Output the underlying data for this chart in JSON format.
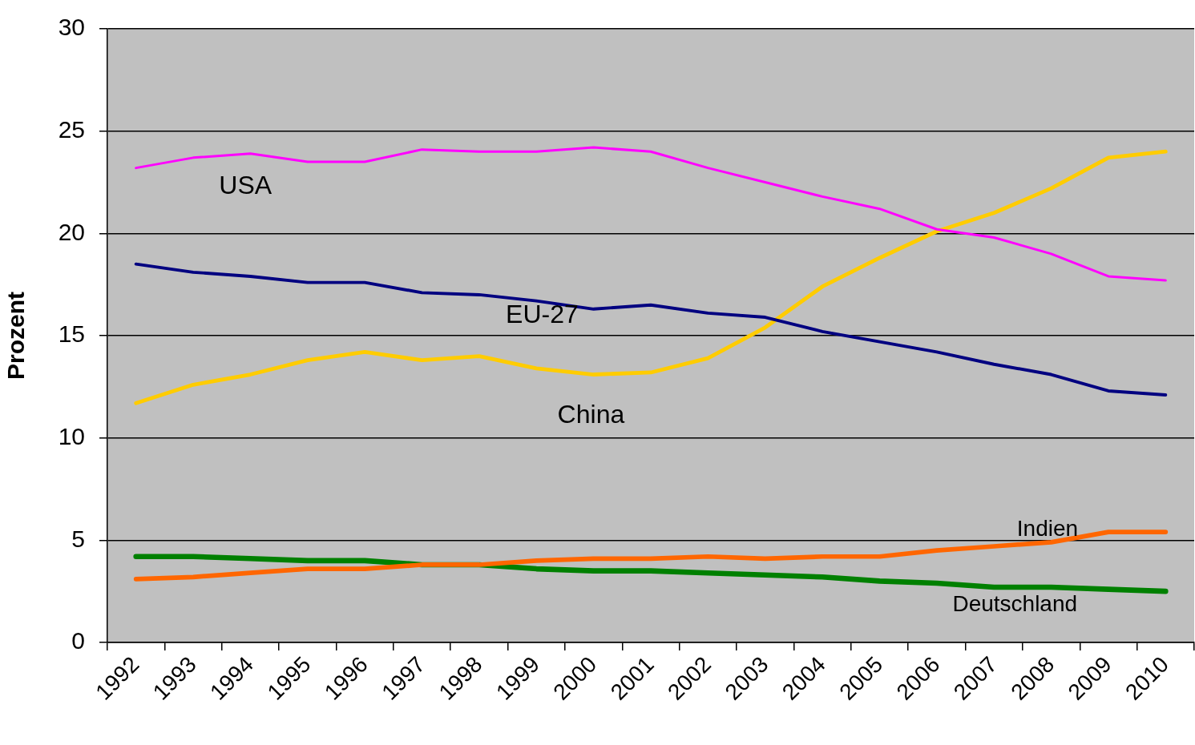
{
  "chart_data": {
    "type": "line",
    "ylabel": "Prozent",
    "categories": [
      "1992",
      "1993",
      "1994",
      "1995",
      "1996",
      "1997",
      "1998",
      "1999",
      "2000",
      "2001",
      "2002",
      "2003",
      "2004",
      "2005",
      "2006",
      "2007",
      "2008",
      "2009",
      "2010"
    ],
    "ylim": [
      0,
      30
    ],
    "yticks": [
      0,
      5,
      10,
      15,
      20,
      25,
      30
    ],
    "grid": "y",
    "legend": false,
    "marker": "none",
    "line_style": "solid",
    "series": [
      {
        "name": "USA",
        "color": "#ff00ff",
        "values": [
          23.2,
          23.7,
          23.9,
          23.5,
          23.5,
          24.1,
          24.0,
          24.0,
          24.2,
          24.0,
          23.2,
          22.5,
          21.8,
          21.2,
          20.2,
          19.8,
          19.0,
          17.9,
          17.7
        ]
      },
      {
        "name": "EU-27",
        "color": "#000080",
        "values": [
          18.5,
          18.1,
          17.9,
          17.6,
          17.6,
          17.1,
          17.0,
          16.7,
          16.3,
          16.5,
          16.1,
          15.9,
          15.2,
          14.7,
          14.2,
          13.6,
          13.1,
          12.3,
          12.1
        ]
      },
      {
        "name": "China",
        "color": "#ffcc00",
        "values": [
          11.7,
          12.6,
          13.1,
          13.8,
          14.2,
          13.8,
          14.0,
          13.4,
          13.1,
          13.2,
          13.9,
          15.4,
          17.4,
          18.8,
          20.1,
          21.0,
          22.2,
          23.7,
          24.0
        ]
      },
      {
        "name": "Indien",
        "color": "#ff6600",
        "values": [
          3.1,
          3.2,
          3.4,
          3.6,
          3.6,
          3.8,
          3.8,
          4.0,
          4.1,
          4.1,
          4.2,
          4.1,
          4.2,
          4.2,
          4.5,
          4.7,
          4.9,
          5.4,
          5.4
        ]
      },
      {
        "name": "Deutschland",
        "color": "#008000",
        "values": [
          4.2,
          4.2,
          4.1,
          4.0,
          4.0,
          3.8,
          3.8,
          3.6,
          3.5,
          3.5,
          3.4,
          3.3,
          3.2,
          3.0,
          2.9,
          2.7,
          2.7,
          2.6,
          2.5
        ]
      }
    ]
  }
}
